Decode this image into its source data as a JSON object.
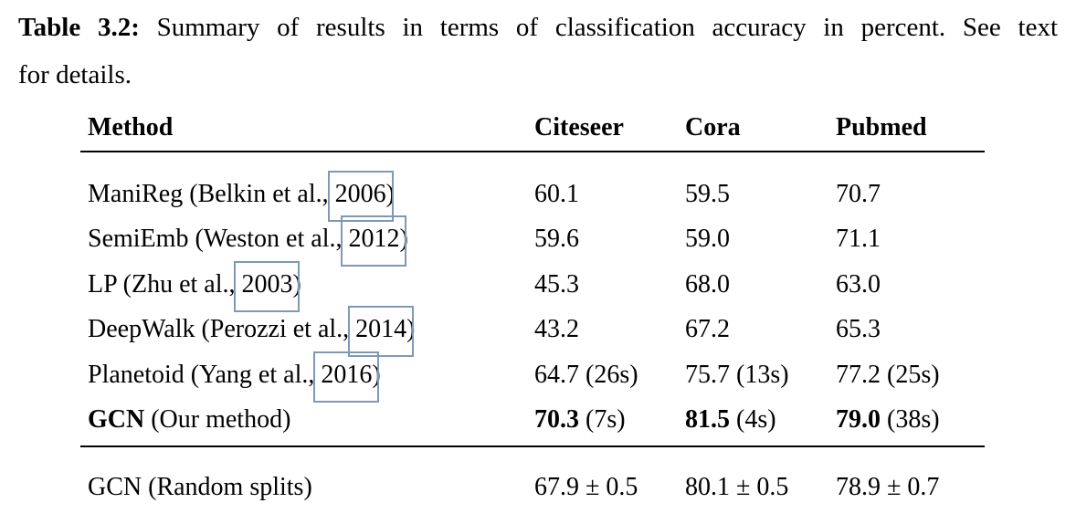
{
  "caption": {
    "label": "Table 3.2:",
    "line1": "Summary of results in terms of classification accuracy in percent. See text",
    "line2": "for details."
  },
  "table": {
    "columns": {
      "method": "Method",
      "citeseer": "Citeseer",
      "cora": "Cora",
      "pubmed": "Pubmed"
    },
    "rows": [
      {
        "method_pre": "ManiReg (Belkin et al., ",
        "year": "2006",
        "method_post": ")",
        "citeseer": "60.1",
        "cora": "59.5",
        "pubmed": "70.7"
      },
      {
        "method_pre": "SemiEmb (Weston et al., ",
        "year": "2012",
        "method_post": ")",
        "citeseer": "59.6",
        "cora": "59.0",
        "pubmed": "71.1"
      },
      {
        "method_pre": "LP (Zhu et al., ",
        "year": "2003",
        "method_post": ")",
        "citeseer": "45.3",
        "cora": "68.0",
        "pubmed": "63.0"
      },
      {
        "method_pre": "DeepWalk (Perozzi et al., ",
        "year": "2014",
        "method_post": ")",
        "citeseer": "43.2",
        "cora": "67.2",
        "pubmed": "65.3"
      },
      {
        "method_pre": "Planetoid (Yang et al., ",
        "year": "2016",
        "method_post": ")",
        "citeseer": "64.7 (26s)",
        "cora": "75.7 (13s)",
        "pubmed": "77.2 (25s)"
      }
    ],
    "gcn_row": {
      "method_bold": "GCN",
      "method_rest": " (Our method)",
      "citeseer_bold": "70.3",
      "citeseer_time": " (7s)",
      "cora_bold": "81.5",
      "cora_time": " (4s)",
      "pubmed_bold": "79.0",
      "pubmed_time": " (38s)"
    },
    "footer_row": {
      "method": "GCN (Random splits)",
      "citeseer": "67.9 ± 0.5",
      "cora": "80.1 ± 0.5",
      "pubmed": "78.9 ± 0.7"
    }
  },
  "colors": {
    "link_box": "#7f99b4",
    "text": "#000000",
    "rule": "#000000"
  }
}
